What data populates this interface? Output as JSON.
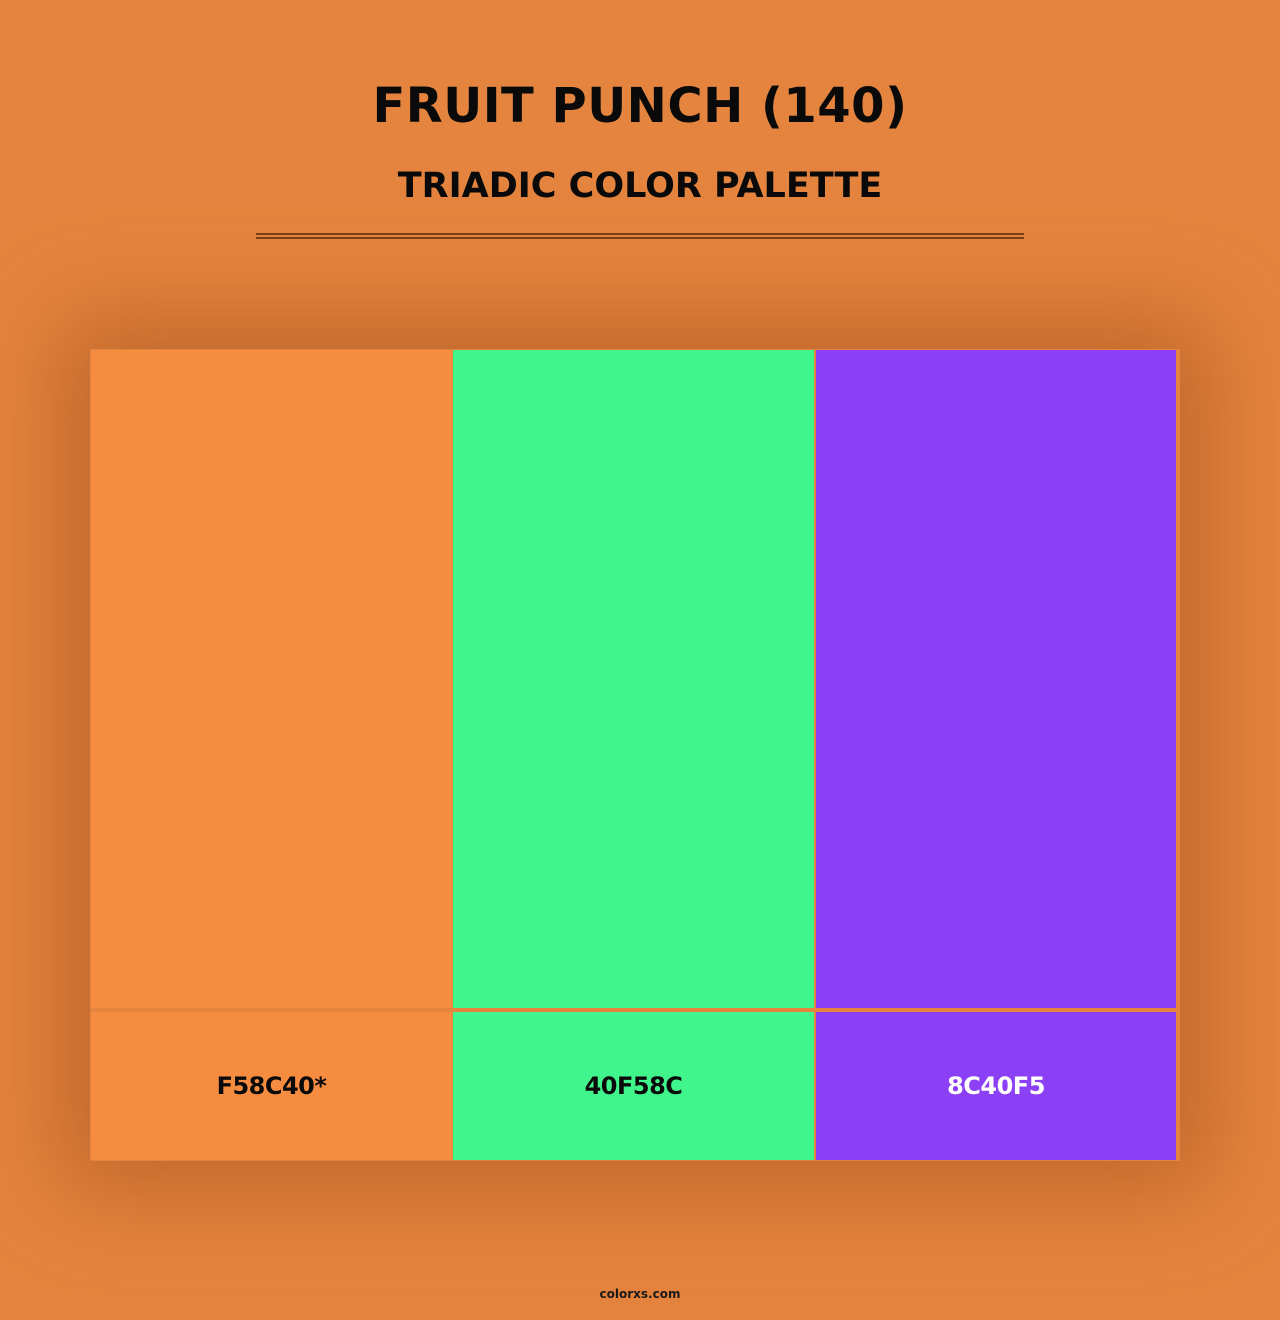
{
  "title": "FRUIT PUNCH (140)",
  "subtitle": "TRIADIC COLOR PALETTE",
  "swatches": [
    {
      "hex": "F58C40*",
      "color": "#f58c40",
      "text_color": "#0a0a0a"
    },
    {
      "hex": "40F58C",
      "color": "#40f58c",
      "text_color": "#0a0a0a"
    },
    {
      "hex": "8C40F5",
      "color": "#8c40f5",
      "text_color": "#ffffff"
    }
  ],
  "footer": "colorxs.com",
  "colors": {
    "background": "#e5843e",
    "rule": "#7a4214"
  }
}
